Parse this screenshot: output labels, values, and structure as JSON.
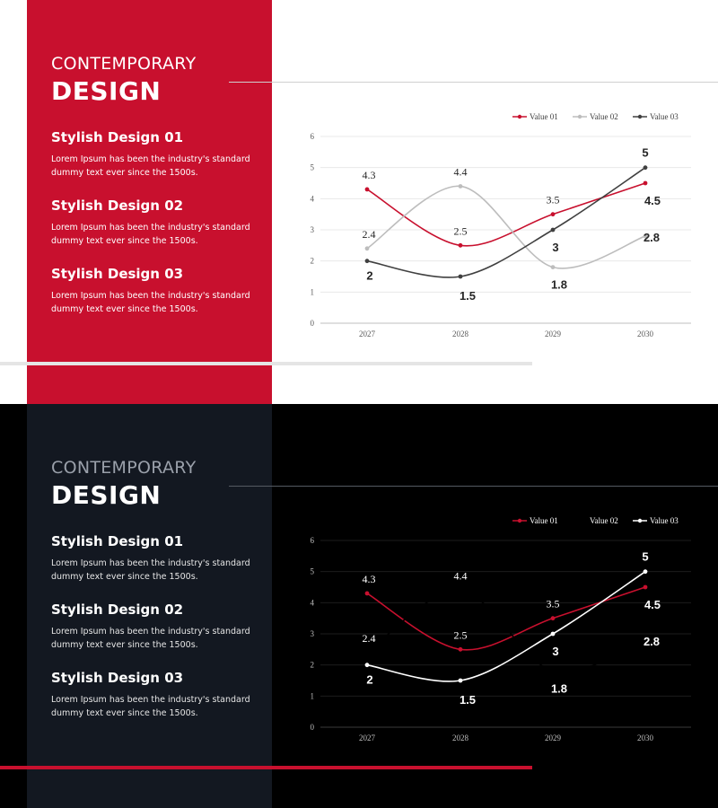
{
  "slides": [
    {
      "theme": "light",
      "title_top": "CONTEMPORARY",
      "title_main": "DESIGN",
      "items": [
        {
          "heading": "Stylish Design 01",
          "text": "Lorem Ipsum has been the industry's standard dummy text ever since the 1500s."
        },
        {
          "heading": "Stylish Design 02",
          "text": "Lorem Ipsum has been the industry's standard dummy text ever since the 1500s."
        },
        {
          "heading": "Stylish Design 03",
          "text": "Lorem Ipsum has been the industry's standard dummy text ever since the 1500s."
        }
      ]
    },
    {
      "theme": "dark",
      "title_top": "CONTEMPORARY",
      "title_main": "DESIGN",
      "items": [
        {
          "heading": "Stylish Design 01",
          "text": "Lorem Ipsum has been the industry's standard dummy text ever since the 1500s."
        },
        {
          "heading": "Stylish Design 02",
          "text": "Lorem Ipsum has been the industry's standard dummy text ever since the 1500s."
        },
        {
          "heading": "Stylish Design 03",
          "text": "Lorem Ipsum has been the industry's standard dummy text ever since the 1500s."
        }
      ]
    }
  ],
  "chart_data": [
    {
      "type": "line",
      "title": "",
      "xlabel": "",
      "ylabel": "",
      "categories": [
        "2027",
        "2028",
        "2029",
        "2030"
      ],
      "ylim": [
        0,
        6
      ],
      "yticks": [
        "0",
        "1",
        "2",
        "3",
        "4",
        "5",
        "6"
      ],
      "grid": true,
      "legend": "top-right",
      "series": [
        {
          "name": "Value 01",
          "values": [
            4.3,
            2.5,
            3.5,
            4.5
          ],
          "color": "#c8102e"
        },
        {
          "name": "Value 02",
          "values": [
            2.4,
            4.4,
            1.8,
            2.8
          ],
          "color": "#bdbdbd"
        },
        {
          "name": "Value 03",
          "values": [
            2,
            1.5,
            3,
            5
          ],
          "color": "#404040"
        }
      ]
    },
    {
      "type": "line",
      "title": "",
      "xlabel": "",
      "ylabel": "",
      "categories": [
        "2027",
        "2028",
        "2029",
        "2030"
      ],
      "ylim": [
        0,
        6
      ],
      "yticks": [
        "0",
        "1",
        "2",
        "3",
        "4",
        "5",
        "6"
      ],
      "grid": true,
      "legend": "top-right",
      "series": [
        {
          "name": "Value 01",
          "values": [
            4.3,
            2.5,
            3.5,
            4.5
          ],
          "color": "#c8102e"
        },
        {
          "name": "Value 02",
          "values": [
            2.4,
            4.4,
            1.8,
            2.8
          ],
          "color": "#000000"
        },
        {
          "name": "Value 03",
          "values": [
            2,
            1.5,
            3,
            5
          ],
          "color": "#ffffff"
        }
      ]
    }
  ]
}
